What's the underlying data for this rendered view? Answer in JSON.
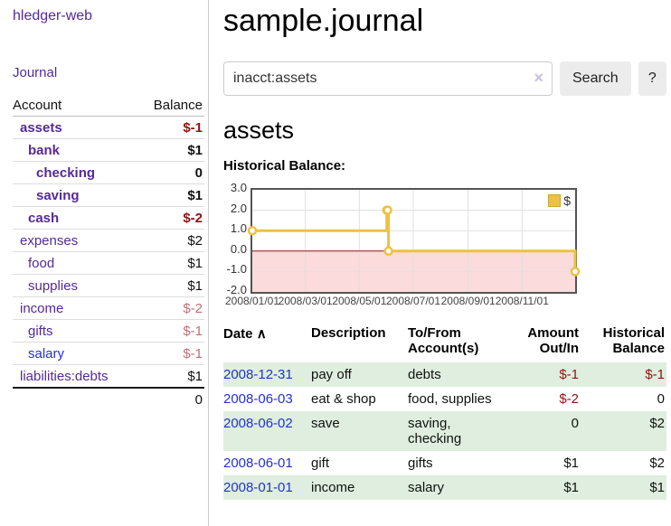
{
  "app": {
    "brand": "hledger-web",
    "nav_journal": "Journal"
  },
  "colors": {
    "link_purple": "#552a97",
    "link_blue": "#2233cc",
    "negative_strong": "#941111",
    "negative_muted": "#bc7179",
    "row_shade_green": "#dfeede",
    "series_gold": "#edc240"
  },
  "sidebar": {
    "headers": [
      "Account",
      "Balance"
    ],
    "rows": [
      {
        "account": "assets",
        "depth": 1,
        "bold": true,
        "balance": "$-1",
        "tone": "neg-strong"
      },
      {
        "account": "bank",
        "depth": 2,
        "bold": true,
        "balance": "$1",
        "tone": ""
      },
      {
        "account": "checking",
        "depth": 3,
        "bold": true,
        "balance": "0",
        "tone": ""
      },
      {
        "account": "saving",
        "depth": 3,
        "bold": true,
        "balance": "$1",
        "tone": ""
      },
      {
        "account": "cash",
        "depth": 2,
        "bold": true,
        "balance": "$-2",
        "tone": "neg-strong"
      },
      {
        "account": "expenses",
        "depth": 1,
        "bold": false,
        "balance": "$2",
        "tone": ""
      },
      {
        "account": "food",
        "depth": 2,
        "bold": false,
        "balance": "$1",
        "tone": ""
      },
      {
        "account": "supplies",
        "depth": 2,
        "bold": false,
        "balance": "$1",
        "tone": ""
      },
      {
        "account": "income",
        "depth": 1,
        "bold": false,
        "balance": "$-2",
        "tone": "neg-muted"
      },
      {
        "account": "gifts",
        "depth": 2,
        "bold": false,
        "balance": "$-1",
        "tone": "neg-muted"
      },
      {
        "account": "salary",
        "depth": 2,
        "bold": false,
        "balance": "$-1",
        "tone": "neg-muted",
        "link": "blue"
      },
      {
        "account": "liabilities:debts",
        "depth": 1,
        "bold": false,
        "balance": "$1",
        "tone": ""
      }
    ],
    "total": "0"
  },
  "main": {
    "title": "sample.journal",
    "search": {
      "value": "inacct:assets",
      "clear_icon": "×",
      "button_label": "Search",
      "help_label": "?"
    },
    "account_heading": "assets",
    "chart_label": "Historical Balance:"
  },
  "chart_data": {
    "type": "line",
    "step": true,
    "title": "Historical Balance:",
    "xlim": [
      "2008-01-01",
      "2008-12-31"
    ],
    "ylim": [
      -2,
      3
    ],
    "yticks": [
      3,
      2,
      1,
      0,
      -1,
      -2
    ],
    "xticks": [
      {
        "date": "2008-01-01",
        "label": "2008/01/01"
      },
      {
        "date": "2008-03-01",
        "label": "2008/03/01"
      },
      {
        "date": "2008-05-01",
        "label": "2008/05/01"
      },
      {
        "date": "2008-07-01",
        "label": "2008/07/01"
      },
      {
        "date": "2008-09-01",
        "label": "2008/09/01"
      },
      {
        "date": "2008-11-01",
        "label": "2008/11/01"
      }
    ],
    "legend_position": "top-right",
    "series": [
      {
        "name": "$",
        "color": "#edc240",
        "points": [
          {
            "date": "2008-01-01",
            "value": 1
          },
          {
            "date": "2008-06-01",
            "value": 2
          },
          {
            "date": "2008-06-02",
            "value": 2
          },
          {
            "date": "2008-06-03",
            "value": 0
          },
          {
            "date": "2008-12-31",
            "value": -1
          }
        ]
      }
    ],
    "colors": {
      "negative_region": "#fbdbdb",
      "zero_line": "#8b1515",
      "grid": "#e0e0e0",
      "border": "#545454"
    }
  },
  "register": {
    "headers": [
      "Date",
      "Description",
      "To/From Account(s)",
      "Amount Out/In",
      "Historical Balance"
    ],
    "sort_icon": "∧",
    "rows": [
      {
        "date": "2008-12-31",
        "description": "pay off",
        "accounts": "debts",
        "amount": "$-1",
        "amount_negative": true,
        "balance": "$-1",
        "balance_negative": true,
        "shaded": true
      },
      {
        "date": "2008-06-03",
        "description": "eat & shop",
        "accounts": "food, supplies",
        "amount": "$-2",
        "amount_negative": true,
        "balance": "0",
        "balance_negative": false,
        "shaded": false
      },
      {
        "date": "2008-06-02",
        "description": "save",
        "accounts": "saving, checking",
        "amount": "0",
        "amount_negative": false,
        "balance": "$2",
        "balance_negative": false,
        "shaded": true
      },
      {
        "date": "2008-06-01",
        "description": "gift",
        "accounts": "gifts",
        "amount": "$1",
        "amount_negative": false,
        "balance": "$2",
        "balance_negative": false,
        "shaded": false
      },
      {
        "date": "2008-01-01",
        "description": "income",
        "accounts": "salary",
        "amount": "$1",
        "amount_negative": false,
        "balance": "$1",
        "balance_negative": false,
        "shaded": true
      }
    ]
  }
}
